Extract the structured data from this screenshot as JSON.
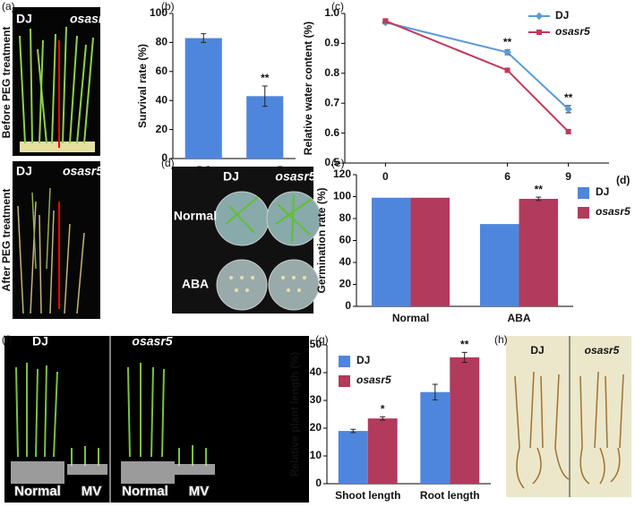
{
  "panel_labels": [
    "(a)",
    "(b)",
    "(c)",
    "(d)",
    "(e)",
    "(f)",
    "(g)",
    "(h)"
  ],
  "photos": {
    "a_before": {
      "labels": [
        "DJ",
        "osasr5"
      ],
      "caption": "Before PEG treatment"
    },
    "a_after": {
      "labels": [
        "DJ",
        "osasr5"
      ],
      "caption": "After PEG treatment"
    },
    "d": {
      "column_labels": [
        "DJ",
        "osasr5"
      ],
      "row_labels": [
        "Normal",
        "ABA"
      ]
    },
    "f": {
      "groups": [
        {
          "label": "DJ",
          "conditions": [
            "Normal",
            "MV"
          ]
        },
        {
          "label": "osasr5",
          "conditions": [
            "Normal",
            "MV"
          ]
        }
      ]
    },
    "h": {
      "labels": [
        "DJ",
        "osasr5"
      ]
    }
  },
  "chart_data": [
    {
      "type": "bar",
      "ylabel": "Survival rate (%)",
      "categories": [
        "DJ",
        "osasr5"
      ],
      "series": [
        {
          "color": "#4f86dd",
          "values": [
            83,
            43
          ],
          "errors": [
            3,
            7
          ]
        }
      ],
      "ylim": [
        0,
        100
      ],
      "yticks": [
        0,
        20,
        40,
        60,
        80,
        100
      ],
      "annotations": [
        "**"
      ]
    },
    {
      "type": "line",
      "ylabel": "Relative water content (%)",
      "xlabel": "(d)",
      "x": [
        0,
        6,
        9
      ],
      "xlim": [
        -2,
        11
      ],
      "xticks": [
        0,
        6,
        9
      ],
      "series": [
        {
          "name": "DJ",
          "color": "#5b9bd5",
          "values": [
            0.97,
            0.87,
            0.68
          ],
          "errors": [
            0.005,
            0.008,
            0.012
          ]
        },
        {
          "name": "osasr5",
          "color": "#c0395a",
          "values": [
            0.975,
            0.81,
            0.605
          ],
          "errors": [
            0.005,
            0.005,
            0.005
          ]
        }
      ],
      "ylim": [
        0.5,
        1.0
      ],
      "yticks": [
        0.5,
        0.6,
        0.7,
        0.8,
        0.9,
        {
          "value": 1.0,
          "label": "1.0"
        }
      ],
      "annotations": [
        "**",
        "**"
      ]
    },
    {
      "type": "bar",
      "ylabel": "Germination rate (%)",
      "categories": [
        "Normal",
        "ABA"
      ],
      "series": [
        {
          "name": "DJ",
          "color": "#4f86dd",
          "values": [
            99,
            75
          ]
        },
        {
          "name": "osasr5",
          "color": "#b23a5c",
          "values": [
            99,
            98
          ],
          "errors": [
            null,
            1.5
          ]
        }
      ],
      "ylim": [
        0,
        120
      ],
      "yticks": [
        0,
        20,
        40,
        60,
        80,
        100,
        120
      ],
      "annotations": [
        "**"
      ]
    },
    {
      "type": "bar",
      "ylabel": "Relative plant length (%)",
      "categories": [
        "Shoot length",
        "Root length"
      ],
      "series": [
        {
          "name": "DJ",
          "color": "#4f86dd",
          "values": [
            19,
            33
          ],
          "errors": [
            0.6,
            2.8
          ]
        },
        {
          "name": "osasr5",
          "color": "#b23a5c",
          "values": [
            23.5,
            45.5
          ],
          "errors": [
            0.6,
            1.8
          ]
        }
      ],
      "ylim": [
        0,
        50
      ],
      "yticks": [
        0,
        10,
        20,
        30,
        40,
        50
      ],
      "annotations": [
        "*",
        "**"
      ]
    }
  ]
}
